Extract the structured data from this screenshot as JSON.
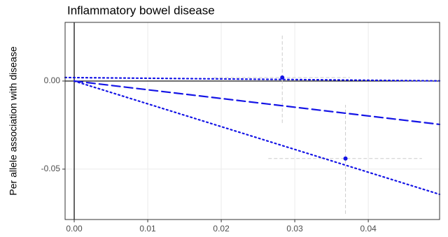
{
  "chart_data": {
    "type": "scatter",
    "title": "Inflammatory bowel disease",
    "y_label": "Per allele association with disease",
    "xlim": [
      -0.00124,
      0.0497
    ],
    "ylim": [
      -0.0786,
      0.0333
    ],
    "xticks": [
      {
        "value": 0,
        "label": "0.00"
      },
      0.01,
      0.02,
      0.03,
      0.04
    ],
    "yticks": [
      {
        "value": -0.05,
        "label": "-0.05"
      },
      {
        "value": 0,
        "label": "0.00"
      }
    ],
    "grid": true,
    "points": {
      "color": "#1414e6",
      "error_color": "#cccccc",
      "x": [
        0.0283,
        0.0369
      ],
      "values": [
        0.002,
        -0.044
      ],
      "y_low": [
        -0.0238,
        -0.0754
      ],
      "y_high": [
        0.027,
        -0.0135
      ],
      "x_low": [
        0.019,
        0.0264
      ],
      "x_high": [
        0.0375,
        0.0473
      ]
    },
    "lines": [
      {
        "color": "#1414e6",
        "dash": "dotted",
        "x": [
          -0.00124,
          0.0497
        ],
        "values": [
          0.002,
          0.0001
        ]
      },
      {
        "color": "#1414e6",
        "dash": "dashed",
        "x": [
          0,
          0.0497
        ],
        "values": [
          0,
          -0.0246
        ]
      },
      {
        "color": "#1414e6",
        "dash": "dotted",
        "x": [
          0,
          0.0497
        ],
        "values": [
          0,
          -0.0643
        ]
      }
    ]
  }
}
